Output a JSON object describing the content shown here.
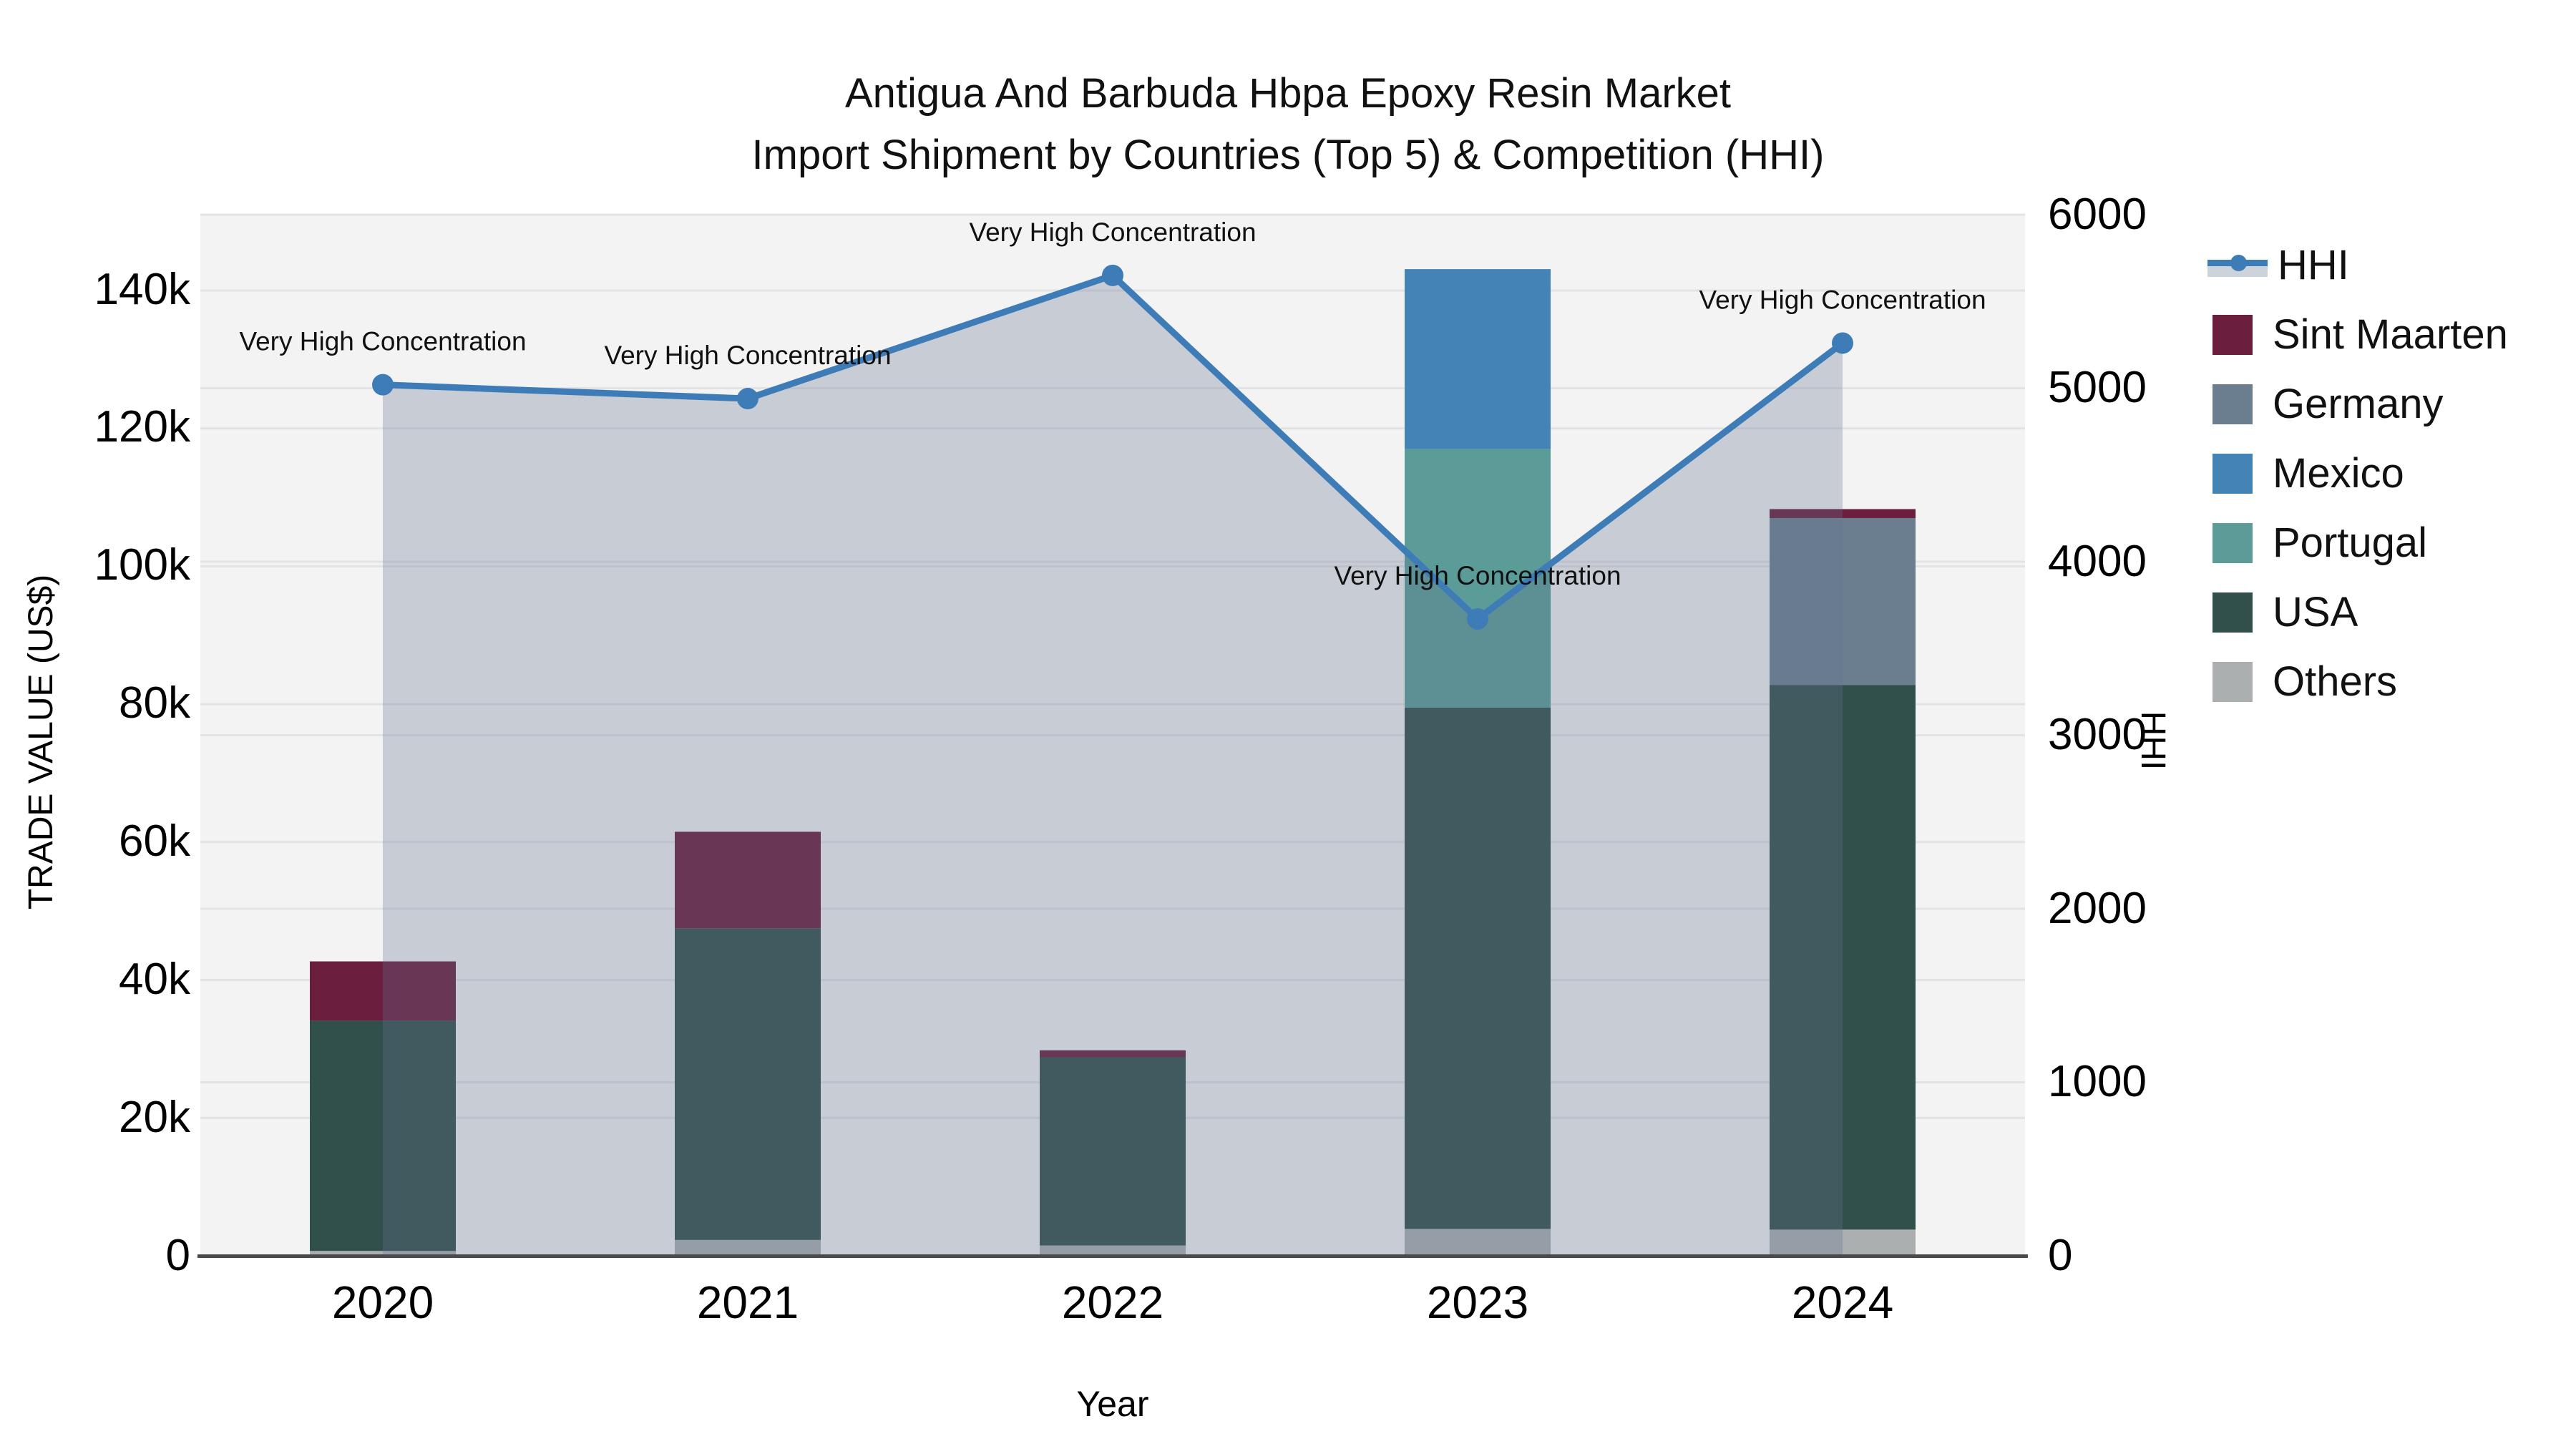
{
  "title": {
    "line1": "Antigua And Barbuda Hbpa Epoxy Resin Market",
    "line2": "Import Shipment by Countries (Top 5) & Competition (HHI)"
  },
  "axes": {
    "left": {
      "title": "TRADE VALUE (US$)",
      "ticks": [
        "0",
        "20k",
        "40k",
        "60k",
        "80k",
        "100k",
        "120k",
        "140k"
      ]
    },
    "right": {
      "title": "HHI",
      "ticks": [
        "0",
        "1000",
        "2000",
        "3000",
        "4000",
        "5000",
        "6000"
      ]
    },
    "x": {
      "title": "Year",
      "ticks": [
        "2020",
        "2021",
        "2022",
        "2023",
        "2024"
      ]
    }
  },
  "legend": {
    "items": [
      {
        "label": "HHI",
        "type": "line",
        "color": "#3E7CB8"
      },
      {
        "label": "Sint Maarten",
        "type": "patch",
        "color": "#6B1E3E"
      },
      {
        "label": "Germany",
        "type": "patch",
        "color": "#6B7E90"
      },
      {
        "label": "Mexico",
        "type": "patch",
        "color": "#4483B5"
      },
      {
        "label": "Portugal",
        "type": "patch",
        "color": "#5B9C99"
      },
      {
        "label": "USA",
        "type": "patch",
        "color": "#31504B"
      },
      {
        "label": "Others",
        "type": "patch",
        "color": "#ABAFB0"
      }
    ]
  },
  "chart_data": {
    "type": "bar",
    "subtype": "stacked-bars-with-line-overlay",
    "categories": [
      "2020",
      "2021",
      "2022",
      "2023",
      "2024"
    ],
    "bar_series": [
      {
        "name": "Sint Maarten",
        "color": "#6B1E3E",
        "values": [
          8600,
          14000,
          1000,
          0,
          1300
        ]
      },
      {
        "name": "Germany",
        "color": "#6B7E90",
        "values": [
          0,
          0,
          0,
          0,
          24200
        ]
      },
      {
        "name": "Mexico",
        "color": "#4483B5",
        "values": [
          0,
          0,
          0,
          26100,
          0
        ]
      },
      {
        "name": "Portugal",
        "color": "#5B9C99",
        "values": [
          0,
          0,
          0,
          37500,
          0
        ]
      },
      {
        "name": "USA",
        "color": "#31504B",
        "values": [
          33400,
          45200,
          27300,
          75600,
          79000
        ]
      },
      {
        "name": "Others",
        "color": "#ABAFB0",
        "values": [
          700,
          2300,
          1500,
          3900,
          3800
        ]
      }
    ],
    "stack_order_bottom_to_top": [
      "Others",
      "USA",
      "Portugal",
      "Mexico",
      "Germany",
      "Sint Maarten"
    ],
    "line_series": {
      "name": "HHI",
      "axis": "right",
      "color": "#3E7CB8",
      "area_fill": "rgba(98,115,141,0.30)",
      "values": [
        5020,
        4940,
        5650,
        3670,
        5260
      ]
    },
    "annotations": [
      {
        "x": "2020",
        "text": "Very High Concentration"
      },
      {
        "x": "2021",
        "text": "Very High Concentration"
      },
      {
        "x": "2022",
        "text": "Very High Concentration"
      },
      {
        "x": "2023",
        "text": "Very High Concentration"
      },
      {
        "x": "2024",
        "text": "Very High Concentration"
      }
    ],
    "xlabel": "Year",
    "ylabel_left": "TRADE VALUE (US$)",
    "ylabel_right": "HHI",
    "ylim_left": [
      0,
      151000
    ],
    "ylim_right": [
      0,
      6000
    ],
    "grid": true,
    "legend_position": "right",
    "plot_bg": "#F3F3F4",
    "grid_color": "#E2E3E5",
    "spine_color": "#4A4A4C"
  }
}
